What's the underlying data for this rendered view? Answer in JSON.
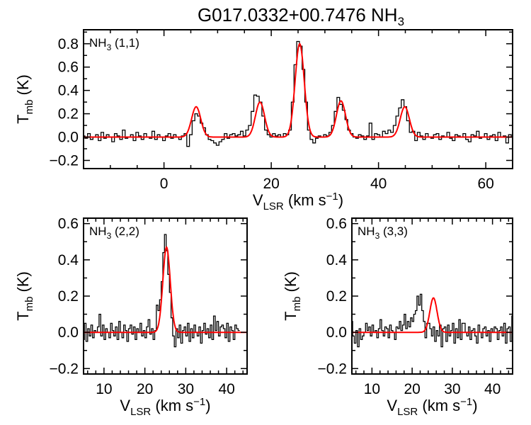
{
  "chart_data": [
    {
      "type": "line",
      "title": "G017.0332+00.7476 NH",
      "title_subscript": "3",
      "panel_label": "NH",
      "panel_label_subscript": "3",
      "panel_label_suffix": " (1,1)",
      "xlabel": "V",
      "xlabel_subscript": "LSR",
      "xlabel_suffix": " (km s",
      "xlabel_superscript": "−1",
      "xlabel_close": ")",
      "ylabel": "T",
      "ylabel_subscript": "mb",
      "ylabel_suffix": " (K)",
      "xlim": [
        -15,
        65
      ],
      "ylim": [
        -0.27,
        0.92
      ],
      "xticks": [
        0,
        20,
        40,
        60
      ],
      "xtick_labels": [
        "0",
        "20",
        "40",
        "60"
      ],
      "yticks": [
        -0.2,
        0.0,
        0.2,
        0.4,
        0.6,
        0.8
      ],
      "ytick_labels": [
        "−0.2",
        "0.0",
        "0.2",
        "0.4",
        "0.6",
        "0.8"
      ],
      "spectrum": {
        "style": "histogram",
        "color": "#000000",
        "v_start": -15,
        "v_step": 0.5,
        "values": [
          0.01,
          -0.01,
          0.03,
          -0.02,
          0.0,
          0.02,
          -0.03,
          0.04,
          -0.01,
          0.02,
          0.0,
          -0.04,
          0.03,
          0.01,
          -0.02,
          0.06,
          -0.01,
          0.0,
          0.02,
          -0.03,
          0.04,
          0.01,
          -0.02,
          0.03,
          0.0,
          -0.01,
          0.05,
          -0.02,
          0.02,
          0.0,
          -0.03,
          0.01,
          0.03,
          -0.01,
          0.02,
          0.0,
          -0.02,
          0.01,
          0.03,
          -0.08,
          0.02,
          0.14,
          0.2,
          0.18,
          0.12,
          0.08,
          0.02,
          -0.02,
          -0.03,
          -0.05,
          -0.07,
          -0.04,
          -0.02,
          0.03,
          -0.01,
          0.02,
          0.03,
          0.01,
          0.02,
          0.05,
          0.01,
          0.06,
          0.1,
          0.22,
          0.36,
          0.35,
          0.3,
          0.18,
          0.06,
          0.02,
          0.0,
          0.03,
          0.01,
          0.02,
          0.0,
          0.03,
          0.02,
          0.06,
          0.3,
          0.62,
          0.82,
          0.78,
          0.58,
          0.3,
          0.06,
          -0.02,
          -0.05,
          -0.01,
          0.01,
          0.0,
          0.02,
          0.01,
          0.04,
          0.1,
          0.22,
          0.34,
          0.28,
          0.23,
          0.15,
          0.06,
          0.03,
          0.0,
          -0.01,
          0.02,
          0.01,
          -0.02,
          0.01,
          0.12,
          -0.02,
          0.03,
          0.02,
          0.0,
          0.05,
          0.03,
          0.06,
          0.04,
          0.1,
          0.18,
          0.25,
          0.32,
          0.26,
          0.14,
          0.04,
          0.05,
          -0.03,
          0.04,
          0.01,
          -0.02,
          0.03,
          0.0,
          -0.01,
          0.02,
          0.03,
          -0.02,
          0.01,
          0.0,
          0.04,
          -0.01,
          -0.03,
          0.02,
          0.01,
          0.0,
          0.03,
          -0.02,
          -0.04,
          0.02,
          0.01,
          0.05,
          -0.01,
          0.0,
          0.03,
          -0.02,
          0.01,
          0.02,
          -0.03,
          0.04,
          0.0,
          0.01,
          -0.05,
          0.02,
          0.0
        ]
      },
      "fit": {
        "style": "line",
        "color": "#ff0000",
        "baseline": 0.0,
        "components": [
          {
            "center": 6.0,
            "amplitude": 0.26,
            "sigma": 0.85
          },
          {
            "center": 17.9,
            "amplitude": 0.3,
            "sigma": 0.85
          },
          {
            "center": 25.3,
            "amplitude": 0.8,
            "sigma": 0.85
          },
          {
            "center": 33.0,
            "amplitude": 0.31,
            "sigma": 0.85
          },
          {
            "center": 44.9,
            "amplitude": 0.26,
            "sigma": 0.85
          }
        ]
      }
    },
    {
      "type": "line",
      "panel_label": "NH",
      "panel_label_subscript": "3",
      "panel_label_suffix": " (2,2)",
      "xlabel": "V",
      "xlabel_subscript": "LSR",
      "xlabel_suffix": " (km s",
      "xlabel_superscript": "−1",
      "xlabel_close": ")",
      "ylabel": "T",
      "ylabel_subscript": "mb",
      "ylabel_suffix": " (K)",
      "xlim": [
        5,
        45
      ],
      "ylim": [
        -0.23,
        0.63
      ],
      "xticks": [
        10,
        20,
        30,
        40
      ],
      "xtick_labels": [
        "10",
        "20",
        "30",
        "40"
      ],
      "yticks": [
        -0.2,
        0.0,
        0.2,
        0.4,
        0.6
      ],
      "ytick_labels": [
        "−0.2",
        "0.0",
        "0.2",
        "0.4",
        "0.6"
      ],
      "spectrum": {
        "style": "histogram",
        "color": "#000000",
        "v_start": 5,
        "v_step": 0.4,
        "values": [
          -0.04,
          0.05,
          -0.05,
          0.02,
          -0.02,
          0.04,
          -0.03,
          0.01,
          0.0,
          0.03,
          0.1,
          -0.02,
          0.04,
          -0.04,
          0.02,
          0.0,
          -0.03,
          0.05,
          0.01,
          -0.02,
          0.03,
          -0.04,
          0.06,
          0.0,
          -0.03,
          0.04,
          0.01,
          -0.05,
          0.02,
          0.04,
          -0.01,
          0.03,
          -0.04,
          0.02,
          0.0,
          0.05,
          -0.02,
          0.01,
          -0.03,
          0.03,
          0.07,
          -0.01,
          0.02,
          -0.04,
          0.01,
          0.15,
          0.12,
          0.18,
          0.28,
          0.44,
          0.54,
          0.45,
          0.32,
          0.22,
          0.08,
          -0.02,
          -0.08,
          0.02,
          -0.03,
          0.04,
          -0.06,
          0.01,
          0.03,
          -0.02,
          0.05,
          -0.05,
          0.02,
          -0.03,
          0.04,
          0.0,
          -0.02,
          0.03,
          -0.06,
          0.01,
          0.05,
          -0.01,
          0.02,
          -0.03,
          0.04,
          -0.04,
          0.09,
          0.01,
          0.06,
          -0.02,
          0.03,
          0.04,
          0.02,
          -0.03,
          0.05,
          -0.05,
          0.03,
          0.01,
          -0.04,
          0.04,
          0.02,
          0.01
        ]
      },
      "fit": {
        "style": "line",
        "color": "#ff0000",
        "baseline": 0.0,
        "components": [
          {
            "center": 25.3,
            "amplitude": 0.47,
            "sigma": 0.9
          }
        ]
      }
    },
    {
      "type": "line",
      "panel_label": "NH",
      "panel_label_subscript": "3",
      "panel_label_suffix": " (3,3)",
      "xlabel": "V",
      "xlabel_subscript": "LSR",
      "xlabel_suffix": " (km s",
      "xlabel_superscript": "−1",
      "xlabel_close": ")",
      "ylabel": "T",
      "ylabel_subscript": "mb",
      "ylabel_suffix": " (K)",
      "xlim": [
        5,
        45
      ],
      "ylim": [
        -0.23,
        0.63
      ],
      "xticks": [
        10,
        20,
        30,
        40
      ],
      "xtick_labels": [
        "10",
        "20",
        "30",
        "40"
      ],
      "yticks": [
        -0.2,
        0.0,
        0.2,
        0.4,
        0.6
      ],
      "ytick_labels": [
        "−0.2",
        "0.0",
        "0.2",
        "0.4",
        "0.6"
      ],
      "spectrum": {
        "style": "histogram",
        "color": "#000000",
        "v_start": 5,
        "v_step": 0.4,
        "values": [
          0.06,
          -0.02,
          -0.06,
          0.01,
          -0.08,
          0.02,
          -0.04,
          -0.02,
          0.0,
          0.05,
          0.01,
          0.03,
          -0.02,
          0.04,
          0.0,
          0.01,
          -0.03,
          0.02,
          0.07,
          0.01,
          -0.02,
          0.03,
          0.02,
          -0.03,
          0.04,
          0.01,
          0.0,
          -0.04,
          0.03,
          0.02,
          0.06,
          0.01,
          0.04,
          0.1,
          0.02,
          0.06,
          0.03,
          0.08,
          0.06,
          0.1,
          0.12,
          0.2,
          0.15,
          0.21,
          0.12,
          0.06,
          -0.03,
          0.05,
          0.05,
          0.02,
          -0.02,
          0.03,
          -0.05,
          0.01,
          -0.02,
          0.04,
          -0.08,
          0.02,
          0.03,
          -0.05,
          0.04,
          -0.02,
          0.01,
          0.05,
          -0.06,
          0.02,
          -0.03,
          0.07,
          -0.04,
          0.05,
          0.05,
          0.0,
          -0.02,
          0.03,
          -0.04,
          0.01,
          0.02,
          -0.02,
          -0.06,
          0.04,
          0.0,
          -0.03,
          0.02,
          0.03,
          -0.02,
          0.01,
          -0.05,
          0.02,
          0.0,
          0.03,
          0.02,
          -0.04,
          0.01,
          0.03,
          -0.02,
          0.05,
          -0.06,
          0.02,
          0.03,
          -0.05,
          0.09
        ]
      },
      "fit": {
        "style": "line",
        "color": "#ff0000",
        "baseline": 0.0,
        "components": [
          {
            "center": 25.3,
            "amplitude": 0.19,
            "sigma": 0.9
          }
        ]
      }
    }
  ]
}
